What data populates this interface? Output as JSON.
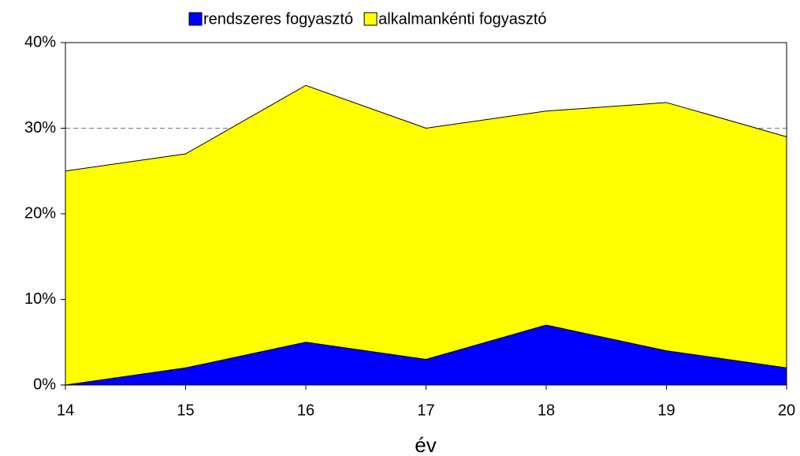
{
  "chart_data": {
    "type": "stacked_area",
    "x_label": "év",
    "x": [
      14,
      15,
      16,
      17,
      18,
      19,
      20
    ],
    "xlim": [
      14,
      20
    ],
    "xticks": [
      14,
      15,
      16,
      17,
      18,
      19,
      20
    ],
    "ylim": [
      0,
      40
    ],
    "yticks": [
      {
        "value": 0,
        "label": "0%"
      },
      {
        "value": 10,
        "label": "10%"
      },
      {
        "value": 20,
        "label": "20%"
      },
      {
        "value": 30,
        "label": "30%"
      },
      {
        "value": 40,
        "label": "40%"
      }
    ],
    "grid": true,
    "legend": "top",
    "series": [
      {
        "name": "rendszeres fogyasztó",
        "color": "#0000ff",
        "values": [
          0,
          2,
          5,
          3,
          7,
          4,
          2
        ]
      },
      {
        "name": "alkalmankénti fogyasztó",
        "color": "#ffff00",
        "values": [
          25,
          25,
          30,
          27,
          25,
          29,
          27
        ]
      }
    ]
  }
}
